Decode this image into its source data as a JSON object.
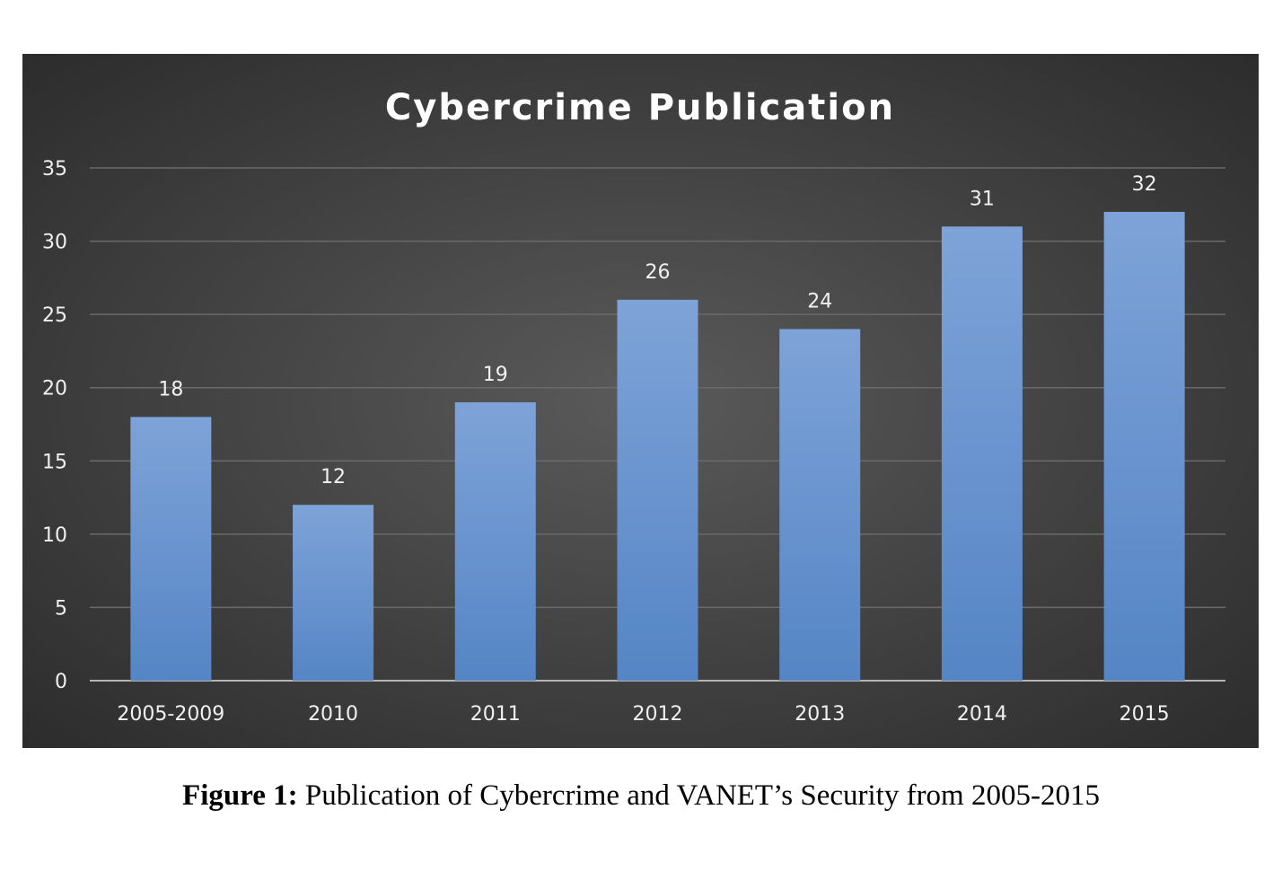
{
  "chart_data": {
    "type": "bar",
    "title": "Cybercrime Publication",
    "categories": [
      "2005-2009",
      "2010",
      "2011",
      "2012",
      "2013",
      "2014",
      "2015"
    ],
    "values": [
      18,
      12,
      19,
      26,
      24,
      31,
      32
    ],
    "data_labels": [
      "18",
      "12",
      "19",
      "26",
      "24",
      "31",
      "32"
    ],
    "y_ticks": [
      "0",
      "5",
      "10",
      "15",
      "20",
      "25",
      "30",
      "35"
    ],
    "ylim": [
      0,
      35
    ],
    "xlabel": "",
    "ylabel": "",
    "grid": true,
    "legend": "none",
    "colors": {
      "bar_top": "#7ea3d8",
      "bar_bottom": "#5585c5",
      "background": "#3c3c3c"
    }
  },
  "caption": {
    "label": "Figure 1:",
    "text": " Publication of Cybercrime and VANET’s Security from 2005-2015"
  }
}
